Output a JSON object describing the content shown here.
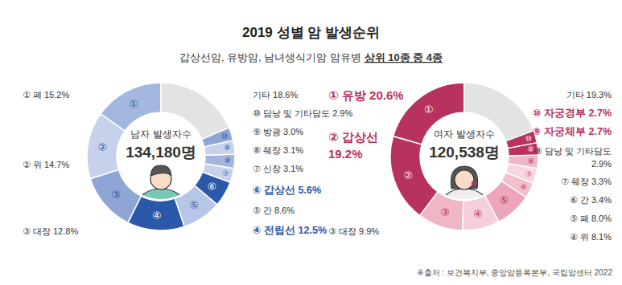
{
  "title": "2019 성별 암 발생순위",
  "subtitle": "갑상선암, 유방암, 남녀생식기암 암유병 ",
  "subtitle_emphasis": "상위 10종 중 4종",
  "source": "※출처 : 보건복지부, 중앙암등록본부, 국립암센터 2022",
  "chart_data": [
    {
      "type": "pie",
      "title": "남자 발생자수",
      "total_label": "134,180명",
      "categories": [
        "폐",
        "위",
        "대장",
        "전립선",
        "간",
        "갑상선",
        "신장",
        "췌장",
        "방광",
        "담낭 및 기타담도",
        "기타"
      ],
      "ranks": [
        "①",
        "②",
        "③",
        "④",
        "⑤",
        "⑥",
        "⑦",
        "⑧",
        "⑨",
        "⑩"
      ],
      "values": [
        15.2,
        14.7,
        12.8,
        12.5,
        8.6,
        5.6,
        3.1,
        3.1,
        3.0,
        2.9,
        18.6
      ],
      "value_labels": [
        "15.2%",
        "14.7%",
        "12.8%",
        "12.5%",
        "8.6%",
        "5.6%",
        "3.1%",
        "3.1%",
        "3.0%",
        "2.9%",
        "18.6%"
      ],
      "colors": [
        "#a3b6de",
        "#c6d2ec",
        "#8ea5d6",
        "#2b58a8",
        "#b7c6e6",
        "#2b58a8",
        "#c6d2ec",
        "#a3b6de",
        "#c6d2ec",
        "#8ea5d6",
        "#e3e3e3"
      ],
      "color": "#2b58a8",
      "data_labels": true
    },
    {
      "type": "pie",
      "title": "여자 발생자수",
      "total_label": "120,538명",
      "categories": [
        "유방",
        "갑상선",
        "대장",
        "위",
        "폐",
        "간",
        "췌장",
        "담낭 및 기타담도",
        "자궁체부",
        "자궁경부",
        "기타"
      ],
      "ranks": [
        "①",
        "②",
        "③",
        "④",
        "⑤",
        "⑥",
        "⑦",
        "⑧",
        "⑨",
        "⑩"
      ],
      "values": [
        20.6,
        19.2,
        9.9,
        8.1,
        8.0,
        3.4,
        3.3,
        2.9,
        2.7,
        2.7,
        19.3
      ],
      "value_labels": [
        "20.6%",
        "19.2%",
        "9.9%",
        "8.1%",
        "8.0%",
        "3.4%",
        "3.3%",
        "2.9%",
        "2.7%",
        "2.7%",
        "19.3%"
      ],
      "colors": [
        "#b8325f",
        "#b8325f",
        "#efb6c6",
        "#f5cfd9",
        "#eca5ba",
        "#f2bfcd",
        "#f7d6df",
        "#efb6c6",
        "#b8325f",
        "#b8325f",
        "#e3e3e3"
      ],
      "color": "#b8325f",
      "data_labels": true
    }
  ]
}
